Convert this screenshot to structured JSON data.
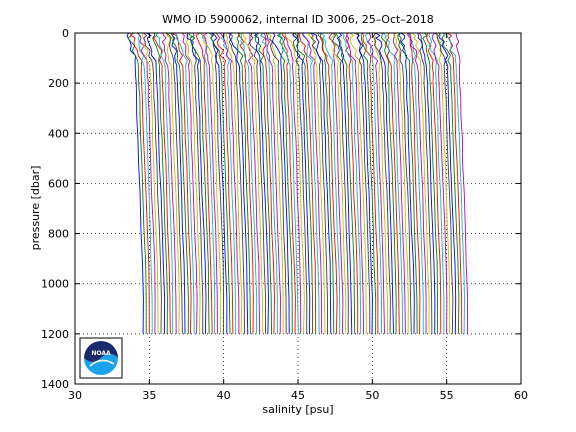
{
  "chart_data": {
    "type": "line",
    "title": "WMO ID 5900062, internal ID 3006, 25–Oct–2018",
    "xlabel": "salinity [psu]",
    "ylabel": "pressure [dbar]",
    "xlim": [
      30,
      60
    ],
    "ylim": [
      0,
      1400
    ],
    "y_reversed": true,
    "grid": "dotted",
    "x_ticks": [
      "30",
      "35",
      "40",
      "45",
      "50",
      "55",
      "60"
    ],
    "y_ticks": [
      "0",
      "200",
      "400",
      "600",
      "800",
      "1000",
      "1200",
      "1400"
    ],
    "series_layout": "waterfall",
    "profile_count": 110,
    "surface_salinity_first": 33.6,
    "deep_salinity_first": 34.6,
    "profile_offset_psu": 0.2,
    "max_pressure_dbar": 1200,
    "series_colors": [
      "#0000ff",
      "#008000",
      "#ff0000",
      "#00bfbf",
      "#bf00bf",
      "#bfbf00",
      "#404040"
    ],
    "logo": {
      "text": "NOAA",
      "icon": "noaa-logo-icon"
    }
  }
}
